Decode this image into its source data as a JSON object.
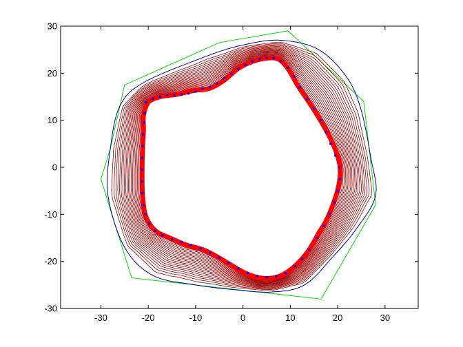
{
  "chart_data": {
    "type": "line",
    "title": "",
    "xlabel": "",
    "ylabel": "",
    "xlim": [
      -38.5,
      37
    ],
    "ylim": [
      -30,
      30
    ],
    "grid": false,
    "legend": "none",
    "xticks": [
      "-30",
      "-20",
      "-10",
      "0",
      "10",
      "20",
      "30"
    ],
    "xtick_values": [
      -30,
      -20,
      -10,
      0,
      10,
      20,
      30
    ],
    "yticks": [
      "-30",
      "-20",
      "-10",
      "0",
      "10",
      "20",
      "30"
    ],
    "ytick_values": [
      -30,
      -20,
      -10,
      0,
      10,
      20,
      30
    ],
    "colors": {
      "polygon": "#00dd00",
      "outer_contour": "#0000aa",
      "contours": "#990000",
      "final_contour": "#ff0000",
      "points": "#0000ff",
      "axes": "#000000"
    },
    "series": [
      {
        "kind": "polygon",
        "points": [
          [
            -30,
            -2.5
          ],
          [
            -23.5,
            -23.5
          ],
          [
            16.5,
            -28
          ],
          [
            28,
            -8
          ],
          [
            25.5,
            14
          ],
          [
            9.5,
            29
          ],
          [
            -5,
            26.5
          ],
          [
            -25,
            17.5
          ],
          [
            -28,
            4
          ]
        ]
      },
      {
        "kind": "outer_contour",
        "points": [
          [
            -28,
            4
          ],
          [
            -26,
            13
          ],
          [
            -21,
            18
          ],
          [
            -8,
            23.5
          ],
          [
            0,
            26
          ],
          [
            8,
            27
          ],
          [
            16,
            25
          ],
          [
            22,
            19
          ],
          [
            25,
            12
          ],
          [
            27,
            2
          ],
          [
            28,
            -6
          ],
          [
            24,
            -13
          ],
          [
            19,
            -19
          ],
          [
            13,
            -25
          ],
          [
            6,
            -26.5
          ],
          [
            -2,
            -26
          ],
          [
            -10,
            -25
          ],
          [
            -19,
            -23
          ],
          [
            -25,
            -17
          ],
          [
            -28.5,
            -6
          ]
        ]
      },
      {
        "kind": "final_contour",
        "points": [
          [
            -21,
            11
          ],
          [
            -20,
            13.8
          ],
          [
            -17.5,
            15
          ],
          [
            -14,
            15.5
          ],
          [
            -10.5,
            16.3
          ],
          [
            -7,
            16.8
          ],
          [
            -4,
            18.5
          ],
          [
            -1,
            21
          ],
          [
            2,
            22.5
          ],
          [
            5,
            23.2
          ],
          [
            7.5,
            23
          ],
          [
            9.5,
            21
          ],
          [
            11.5,
            17.5
          ],
          [
            14.5,
            13
          ],
          [
            17.5,
            8
          ],
          [
            19.5,
            3.8
          ],
          [
            20.5,
            0
          ],
          [
            20.2,
            -4
          ],
          [
            19,
            -8
          ],
          [
            17.5,
            -11.5
          ],
          [
            16,
            -14
          ],
          [
            14,
            -17.5
          ],
          [
            11.5,
            -20.5
          ],
          [
            9,
            -22.5
          ],
          [
            6.5,
            -23.5
          ],
          [
            3.5,
            -23.5
          ],
          [
            0.5,
            -22.5
          ],
          [
            -2.5,
            -20.8
          ],
          [
            -5.5,
            -19
          ],
          [
            -8.5,
            -17.5
          ],
          [
            -12,
            -16.5
          ],
          [
            -15.5,
            -15
          ],
          [
            -18.5,
            -13.5
          ],
          [
            -20.5,
            -10.5
          ],
          [
            -21.2,
            -6
          ],
          [
            -21.3,
            -1
          ],
          [
            -21.2,
            4
          ],
          [
            -21,
            8
          ]
        ]
      },
      {
        "kind": "points",
        "points": [
          [
            -20.5,
            13.8
          ],
          [
            -19,
            14.6
          ],
          [
            -17.5,
            15
          ],
          [
            -16,
            15.3
          ],
          [
            -14.5,
            15.4
          ],
          [
            -13,
            15.5
          ],
          [
            -11.5,
            15.7
          ],
          [
            -10,
            16.1
          ],
          [
            -8.5,
            16.8
          ],
          [
            -7,
            17.1
          ],
          [
            -5.5,
            17.9
          ],
          [
            -4,
            18.9
          ],
          [
            -2.5,
            19.9
          ],
          [
            -1,
            20.9
          ],
          [
            0.5,
            21.8
          ],
          [
            2,
            22.5
          ],
          [
            3.5,
            23
          ],
          [
            5,
            23.3
          ],
          [
            6.5,
            23.2
          ],
          [
            8,
            22.6
          ],
          [
            9.5,
            21.2
          ],
          [
            10.8,
            19.3
          ],
          [
            12,
            17
          ],
          [
            13.5,
            14.5
          ],
          [
            15,
            12.5
          ],
          [
            16.5,
            10
          ],
          [
            17.5,
            7.5
          ],
          [
            18.5,
            5
          ],
          [
            19.5,
            2.5
          ],
          [
            20.3,
            0
          ],
          [
            20.4,
            -2.5
          ],
          [
            20,
            -5
          ],
          [
            19.3,
            -7.5
          ],
          [
            18.3,
            -10
          ],
          [
            17,
            -12.5
          ],
          [
            15.5,
            -15
          ],
          [
            14,
            -17.5
          ],
          [
            12.5,
            -19.5
          ],
          [
            11,
            -21
          ],
          [
            9,
            -22.5
          ],
          [
            7,
            -23.2
          ],
          [
            5,
            -23.4
          ],
          [
            3,
            -23.1
          ],
          [
            1,
            -22.5
          ],
          [
            -1,
            -21.5
          ],
          [
            -3,
            -20.3
          ],
          [
            -5,
            -19.2
          ],
          [
            -7,
            -18.2
          ],
          [
            -9,
            -17.2
          ],
          [
            -11,
            -16.5
          ],
          [
            -13,
            -15.9
          ],
          [
            -15,
            -15.3
          ],
          [
            -17,
            -14.5
          ],
          [
            -18.5,
            -13.5
          ],
          [
            -19.8,
            -12
          ],
          [
            -20.6,
            -10
          ],
          [
            -21,
            -8
          ],
          [
            -21.2,
            -5.5
          ],
          [
            -21.3,
            -3
          ],
          [
            -21.3,
            -0.5
          ],
          [
            -21.3,
            2
          ],
          [
            -21.2,
            4.5
          ],
          [
            -21.1,
            7
          ],
          [
            -20.9,
            9.5
          ],
          [
            -20.8,
            11.5
          ]
        ]
      }
    ],
    "contour_count": 22
  }
}
